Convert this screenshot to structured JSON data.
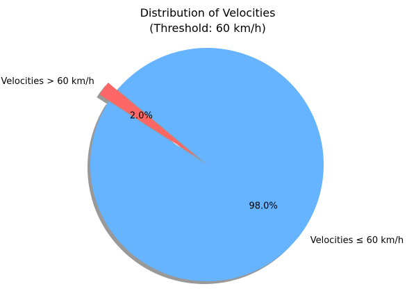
{
  "chart_data": {
    "type": "pie",
    "title": "Distribution of Velocities",
    "subtitle": "(Threshold: 60 km/h)",
    "slices": [
      {
        "label": "Velocities > 60 km/h",
        "value": 2.0,
        "pct_label": "2.0%",
        "color": "#ff6666",
        "exploded": true
      },
      {
        "label": "Velocities ≤ 60 km/h",
        "value": 98.0,
        "pct_label": "98.0%",
        "color": "#66b3ff",
        "exploded": false
      }
    ],
    "start_angle_deg": 140,
    "shadow": true
  }
}
